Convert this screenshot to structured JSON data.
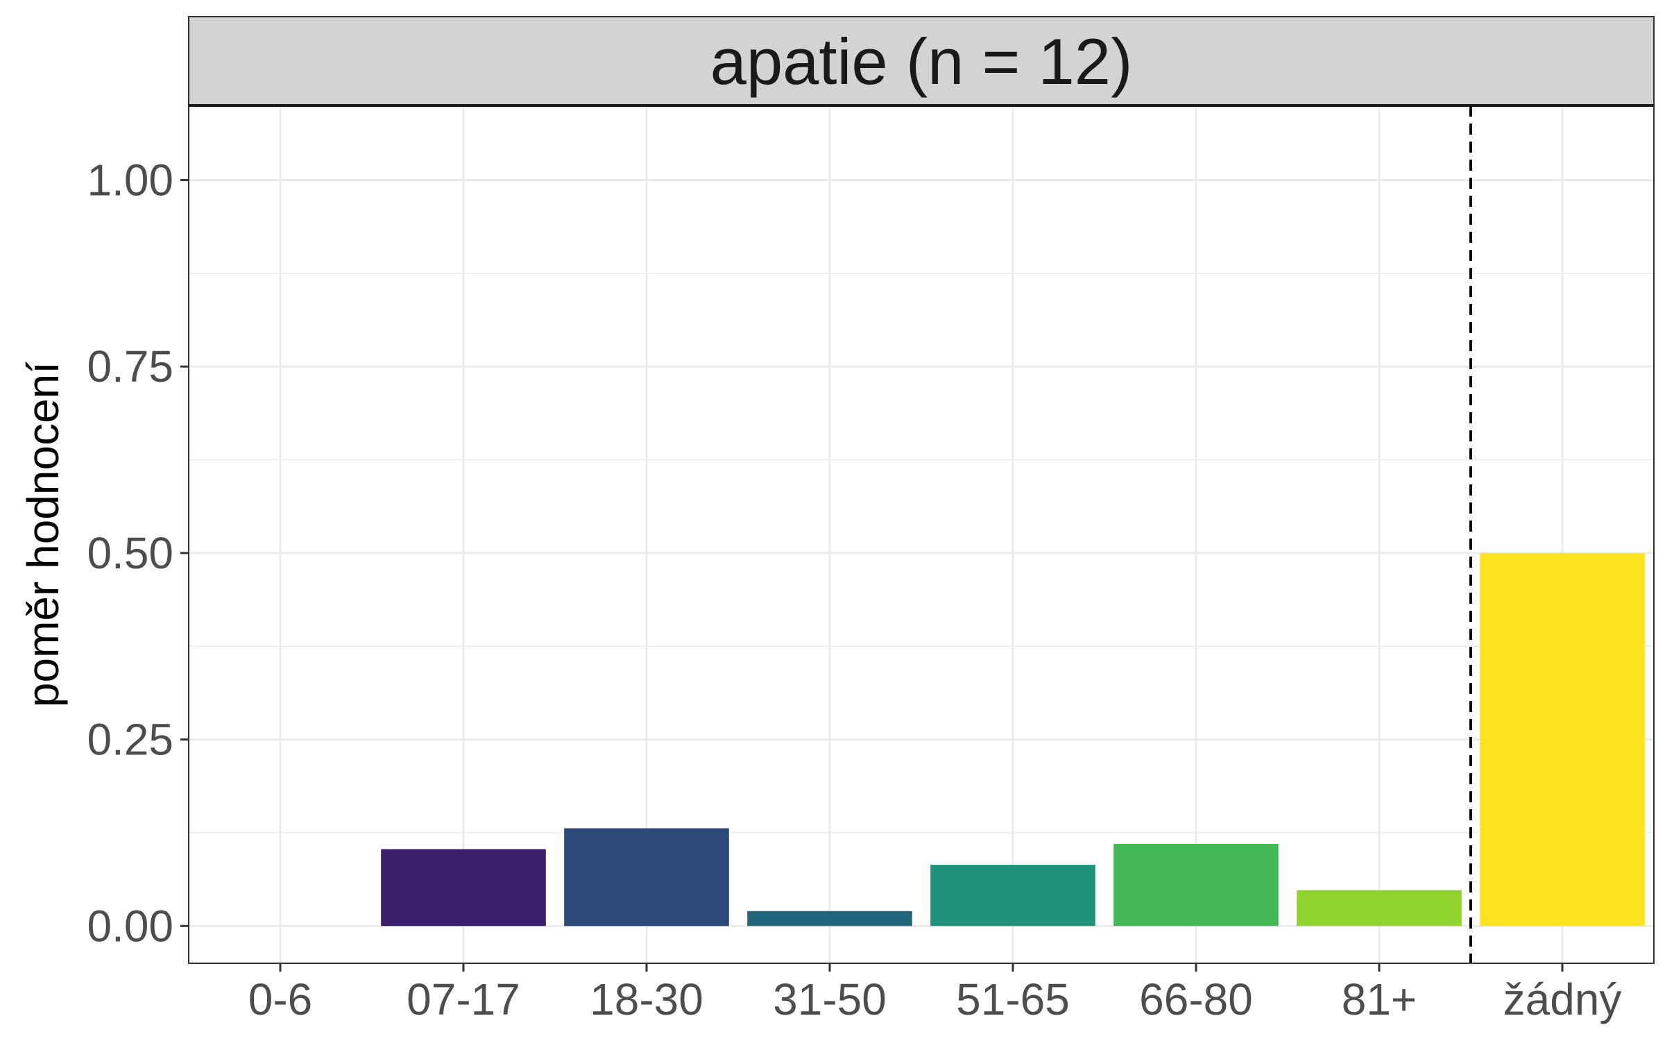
{
  "chart_data": {
    "type": "bar",
    "title": "apatie (n = 12)",
    "xlabel": "",
    "ylabel": "poměr hodnocení",
    "categories": [
      "0-6",
      "07-17",
      "18-30",
      "31-50",
      "51-65",
      "66-80",
      "81+",
      "žádný"
    ],
    "values": [
      0.0,
      0.103,
      0.131,
      0.02,
      0.082,
      0.11,
      0.048,
      0.5
    ],
    "colors": [
      "#440154",
      "#3b1e6b",
      "#2b4a7a",
      "#21667a",
      "#20917a",
      "#43b957",
      "#8fd32c",
      "#fde31f"
    ],
    "yticks": [
      "0.00",
      "0.25",
      "0.50",
      "0.75",
      "1.00"
    ],
    "ylim": [
      -0.05,
      1.1
    ],
    "separator": {
      "after_category": "81+",
      "style": "dashed"
    },
    "grid": true,
    "facet_strip_color": "#d3d3d3",
    "panel_border_color": "#333333",
    "grid_color": "#ebebeb"
  }
}
